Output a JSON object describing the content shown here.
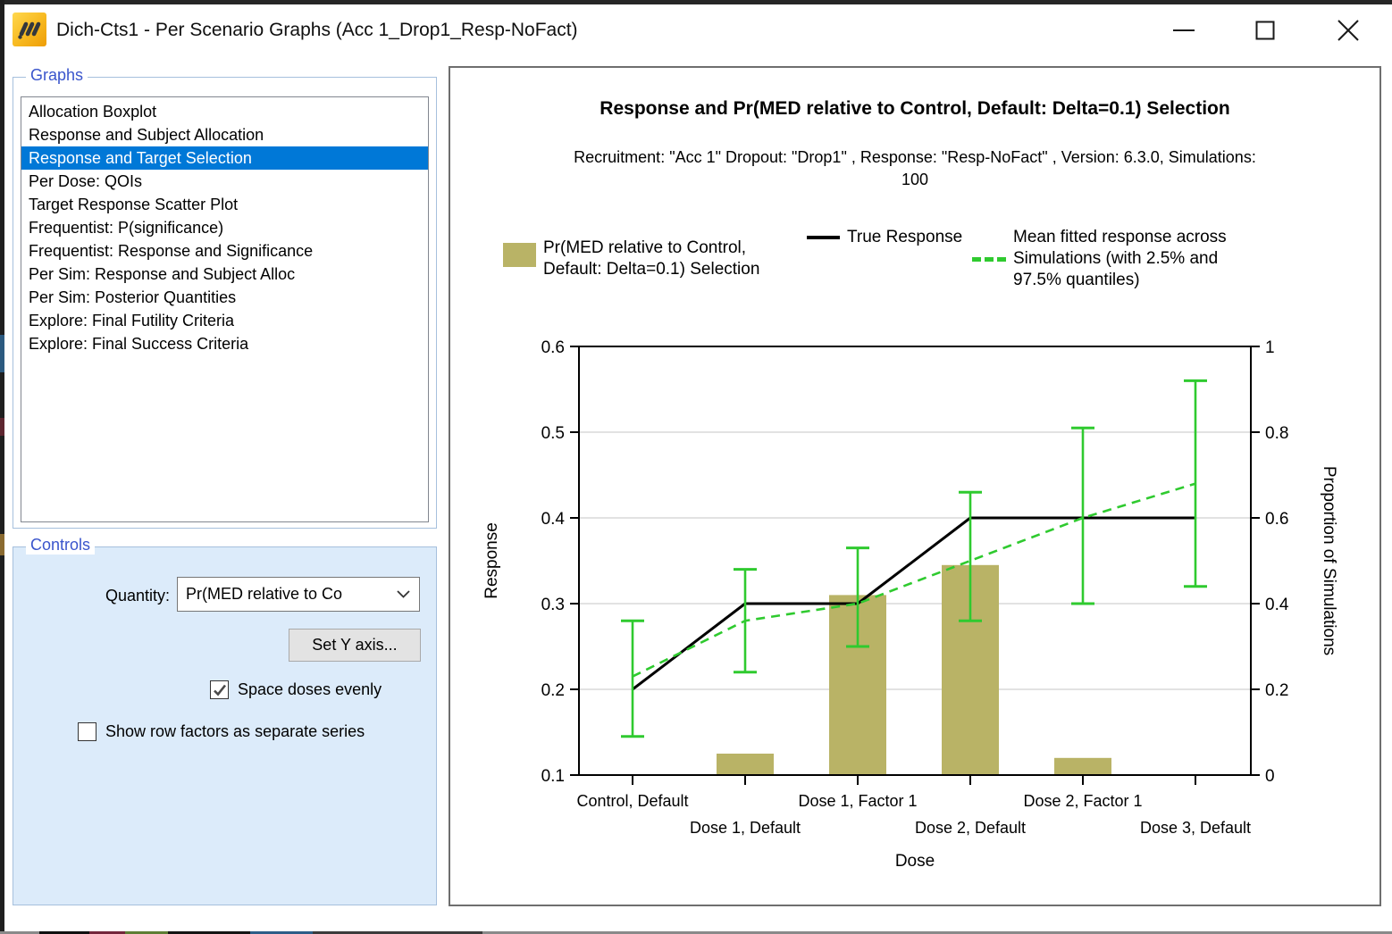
{
  "window": {
    "title": "Dich-Cts1 - Per Scenario Graphs (Acc 1_Drop1_Resp-NoFact)"
  },
  "graphs_panel": {
    "label": "Graphs",
    "items": [
      "Allocation Boxplot",
      "Response and Subject Allocation",
      "Response and Target Selection",
      "Per Dose: QOIs",
      "Target Response Scatter Plot",
      "Frequentist: P(significance)",
      "Frequentist: Response and Significance",
      "Per Sim: Response and Subject Alloc",
      "Per Sim: Posterior Quantities",
      "Explore: Final Futility Criteria",
      "Explore: Final Success Criteria"
    ],
    "selected_index": 2,
    "selected_item": "Response and Target Selection"
  },
  "controls_panel": {
    "label": "Controls",
    "quantity_label": "Quantity:",
    "quantity_value": "Pr(MED relative to Co",
    "set_y_axis_label": "Set Y axis...",
    "checkboxes": [
      {
        "label": "Space doses evenly",
        "checked": true
      },
      {
        "label": "Show row factors as separate series",
        "checked": false
      }
    ]
  },
  "colors": {
    "selection_blue": "#0078d7",
    "groupbox_label_blue": "#3a55cc",
    "controls_panel_bg": "#dcebfa",
    "bar_olive": "#b9b366",
    "true_response_black": "#000000",
    "fitted_green": "#2fca2f",
    "gridline_gray": "#d9d9d9"
  },
  "chart_data": {
    "type": "bar",
    "title": "Response and Pr(MED relative to Control, Default: Delta=0.1) Selection",
    "subtitle_lines": [
      "Recruitment: \"Acc 1\" Dropout: \"Drop1\" , Response: \"Resp-NoFact\" , Version: 6.3.0, Simulations:",
      "100"
    ],
    "categories": [
      "Control, Default",
      "Dose 1, Default",
      "Dose 1, Factor 1",
      "Dose 2, Default",
      "Dose 2, Factor 1",
      "Dose 3, Default"
    ],
    "xlabel": "Dose",
    "ylabel_left": "Response",
    "ylabel_right": "Proportion of Simulations",
    "ylim_left": [
      0.1,
      0.6
    ],
    "ylim_right": [
      0,
      1
    ],
    "yticks_left": [
      {
        "v": 0.1,
        "label": "0.1"
      },
      {
        "v": 0.2,
        "label": "0.2"
      },
      {
        "v": 0.3,
        "label": "0.3"
      },
      {
        "v": 0.4,
        "label": "0.4"
      },
      {
        "v": 0.5,
        "label": "0.5"
      },
      {
        "v": 0.6,
        "label": "0.6"
      }
    ],
    "yticks_right": [
      {
        "v": 0,
        "label": "0"
      },
      {
        "v": 0.2,
        "label": "0.2"
      },
      {
        "v": 0.4,
        "label": "0.4"
      },
      {
        "v": 0.6,
        "label": "0.6"
      },
      {
        "v": 0.8,
        "label": "0.8"
      },
      {
        "v": 1,
        "label": "1"
      }
    ],
    "grid": true,
    "legend_position": "top",
    "series": [
      {
        "name": "Pr(MED relative to Control, Default: Delta=0.1) Selection",
        "type": "bar",
        "axis": "right",
        "color": "#b9b366",
        "values": [
          0,
          0.05,
          0.42,
          0.49,
          0.04,
          0
        ]
      },
      {
        "name": "True Response",
        "type": "line",
        "axis": "left",
        "color": "#000000",
        "values": [
          0.2,
          0.3,
          0.3,
          0.4,
          0.4,
          0.4
        ]
      },
      {
        "name": "Mean fitted response across Simulations (with 2.5% and 97.5% quantiles)",
        "type": "line",
        "style": "dashed",
        "axis": "left",
        "color": "#2fca2f",
        "values": [
          0.215,
          0.28,
          0.3,
          0.35,
          0.4,
          0.44
        ],
        "err_low": [
          0.145,
          0.22,
          0.25,
          0.28,
          0.3,
          0.32
        ],
        "err_high": [
          0.28,
          0.34,
          0.365,
          0.43,
          0.505,
          0.56
        ]
      }
    ],
    "legend": [
      {
        "swatch": "bar",
        "lines": [
          "Pr(MED relative to Control,",
          "Default: Delta=0.1) Selection"
        ]
      },
      {
        "swatch": "solid-line",
        "lines": [
          "True Response"
        ]
      },
      {
        "swatch": "dashed-line",
        "lines": [
          "Mean fitted response across",
          "Simulations (with 2.5% and",
          "97.5% quantiles)"
        ]
      }
    ]
  }
}
